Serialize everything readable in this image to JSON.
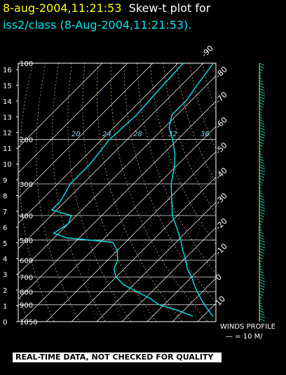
{
  "header": {
    "timestamp": "8-aug-2004,11:21:53",
    "title": "Skew-t plot for",
    "subtitle": "iss2/class (8-Aug-2004,11:21:53)."
  },
  "winds": {
    "label": "WINDS PROFILE",
    "scale": "— = 10 M/"
  },
  "disclaimer": "REAL-TIME DATA, NOT CHECKED FOR QUALITY",
  "colors": {
    "background": "#000000",
    "sounding": "#00e5ee",
    "grid": "#ffffff",
    "adiabat": "#d2a679",
    "title_accent": "#ffff00",
    "wind_axis": "#ffff00"
  },
  "chart_data": {
    "type": "line",
    "subtype": "skew-t",
    "pressure_levels": [
      100,
      200,
      300,
      400,
      500,
      600,
      700,
      800,
      900,
      1050
    ],
    "height_km_ticks": [
      0,
      1,
      2,
      3,
      4,
      5,
      6,
      7,
      8,
      9,
      10,
      11,
      12,
      13,
      14,
      15,
      16
    ],
    "temperature_ticks": [
      -90,
      -80,
      -70,
      -60,
      -50,
      -40,
      -30,
      -20,
      -10,
      0,
      10,
      20,
      30
    ],
    "mixing_ratio_labels": [
      "20",
      "24",
      "28",
      "32",
      "36"
    ],
    "series": [
      {
        "points": [
          [
            100,
            -86
          ],
          [
            120,
            -84
          ],
          [
            140,
            -82
          ],
          [
            160,
            -82
          ],
          [
            180,
            -78
          ],
          [
            200,
            -72
          ],
          [
            230,
            -65
          ],
          [
            260,
            -60
          ],
          [
            300,
            -55
          ],
          [
            350,
            -48
          ],
          [
            400,
            -42
          ],
          [
            450,
            -35
          ],
          [
            500,
            -29
          ],
          [
            550,
            -24
          ],
          [
            600,
            -19
          ],
          [
            650,
            -15
          ],
          [
            700,
            -10
          ],
          [
            750,
            -6
          ],
          [
            800,
            -2
          ],
          [
            850,
            2
          ],
          [
            900,
            6
          ],
          [
            950,
            10
          ],
          [
            1000,
            14
          ]
        ]
      },
      {
        "points": [
          [
            100,
            -98
          ],
          [
            130,
            -97
          ],
          [
            160,
            -96
          ],
          [
            200,
            -97
          ],
          [
            250,
            -95
          ],
          [
            300,
            -95
          ],
          [
            350,
            -92
          ],
          [
            380,
            -92
          ],
          [
            400,
            -82
          ],
          [
            430,
            -80
          ],
          [
            470,
            -82
          ],
          [
            490,
            -75
          ],
          [
            510,
            -55
          ],
          [
            550,
            -50
          ],
          [
            600,
            -46
          ],
          [
            650,
            -44
          ],
          [
            700,
            -40
          ],
          [
            750,
            -34
          ],
          [
            800,
            -26
          ],
          [
            850,
            -18
          ],
          [
            900,
            -12
          ],
          [
            950,
            -2
          ],
          [
            1000,
            6
          ]
        ]
      }
    ]
  }
}
